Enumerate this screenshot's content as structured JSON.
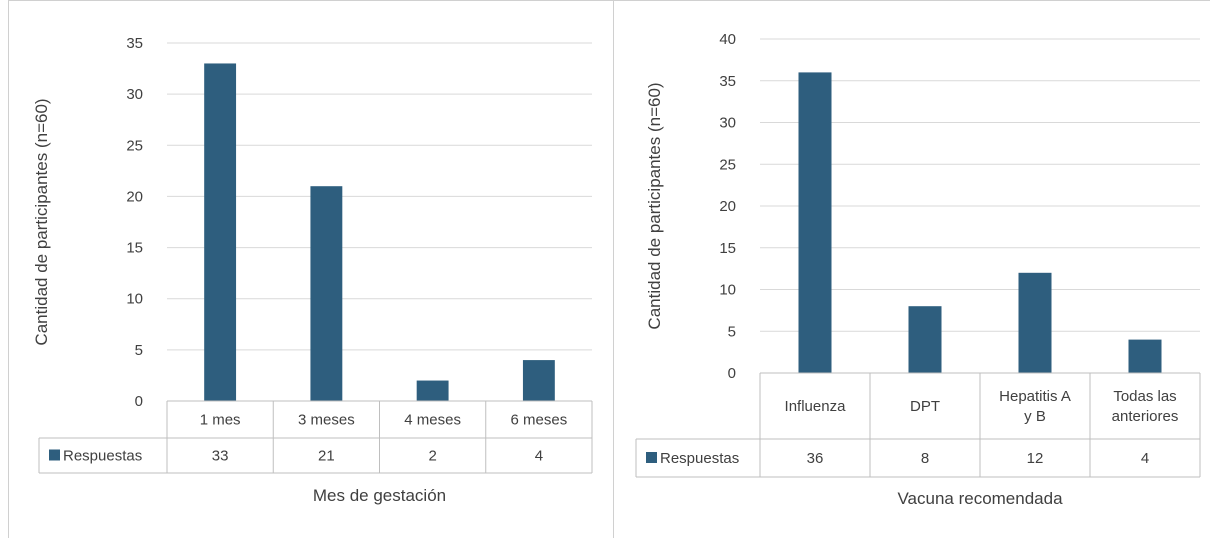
{
  "chart_data": [
    {
      "type": "bar",
      "categories": [
        [
          "1 mes"
        ],
        [
          "3 meses"
        ],
        [
          "4 meses"
        ],
        [
          "6 meses"
        ]
      ],
      "series": [
        {
          "name": "Respuestas",
          "values": [
            33,
            21,
            2,
            4
          ],
          "color": "#2e5e7e"
        }
      ],
      "xlabel": "Mes de gestación",
      "ylabel": "Cantidad de participantes (n=60)",
      "ylim": [
        0,
        35
      ],
      "yticks": [
        0,
        5,
        10,
        15,
        20,
        25,
        30,
        35
      ],
      "grid": true,
      "legend": "data-table"
    },
    {
      "type": "bar",
      "categories": [
        [
          "Influenza"
        ],
        [
          "DPT"
        ],
        [
          "Hepatitis A",
          "y B"
        ],
        [
          "Todas las",
          "anteriores"
        ]
      ],
      "series": [
        {
          "name": "Respuestas",
          "values": [
            36,
            8,
            12,
            4
          ],
          "color": "#2e5e7e"
        }
      ],
      "xlabel": "Vacuna recomendada",
      "ylabel": "Cantidad de participantes (n=60)",
      "ylim": [
        0,
        40
      ],
      "yticks": [
        0,
        5,
        10,
        15,
        20,
        25,
        30,
        35,
        40
      ],
      "grid": true,
      "legend": "data-table"
    }
  ]
}
